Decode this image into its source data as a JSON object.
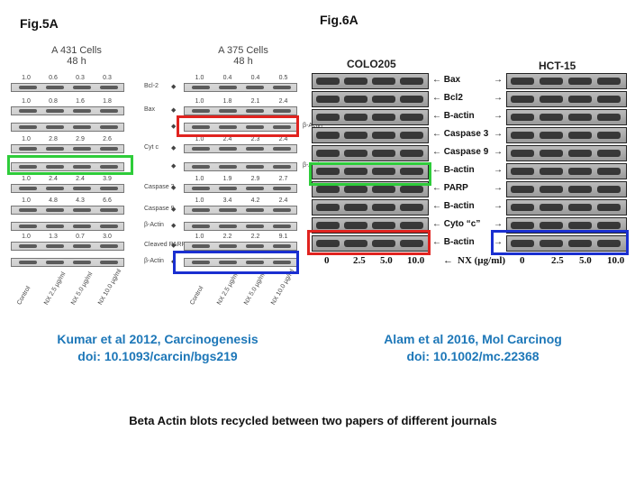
{
  "fig5": {
    "label": "Fig.5A",
    "left_title": "A 431 Cells",
    "left_time": "48 h",
    "right_title": "A 375 Cells",
    "right_time": "48 h",
    "left_rows": [
      {
        "nums": [
          "1.0",
          "0.6",
          "0.3",
          "0.3"
        ],
        "label": "Bcl-2"
      },
      {
        "nums": [
          "1.0",
          "0.8",
          "1.6",
          "1.8"
        ],
        "label": "Bax"
      },
      {
        "nums": [
          "",
          "",
          "",
          ""
        ],
        "label": ""
      },
      {
        "nums": [
          "1.0",
          "2.8",
          "2.9",
          "2.6"
        ],
        "label": "Cyt c"
      },
      {
        "nums": [
          "",
          "",
          "",
          ""
        ],
        "label": ""
      },
      {
        "nums": [
          "1.0",
          "2.4",
          "2.4",
          "3.9"
        ],
        "label": "Caspase 3"
      },
      {
        "nums": [
          "1.0",
          "4.8",
          "4.3",
          "6.6"
        ],
        "label": "Caspase 9"
      },
      {
        "nums": [
          "",
          "",
          "",
          ""
        ],
        "label": "β-Actin"
      },
      {
        "nums": [
          "1.0",
          "1.3",
          "0.7",
          "3.0"
        ],
        "label": "Cleaved PARP"
      },
      {
        "nums": [
          "",
          "",
          "",
          ""
        ],
        "label": "β-Actin"
      }
    ],
    "right_rows": [
      {
        "nums": [
          "1.0",
          "0.4",
          "0.4",
          "0.5"
        ]
      },
      {
        "nums": [
          "1.0",
          "1.8",
          "2.1",
          "2.4"
        ]
      },
      {
        "nums": [
          "",
          "",
          "",
          ""
        ],
        "label": "β-Actin"
      },
      {
        "nums": [
          "1.0",
          "2.4",
          "2.3",
          "2.4"
        ]
      },
      {
        "nums": [
          "",
          "",
          "",
          ""
        ],
        "label": "β-Actin"
      },
      {
        "nums": [
          "1.0",
          "1.9",
          "2.9",
          "2.7"
        ]
      },
      {
        "nums": [
          "1.0",
          "3.4",
          "4.2",
          "2.4"
        ]
      },
      {
        "nums": [
          "",
          "",
          "",
          ""
        ]
      },
      {
        "nums": [
          "1.0",
          "2.2",
          "2.2",
          "9.1"
        ]
      },
      {
        "nums": [
          "",
          "",
          "",
          ""
        ]
      }
    ],
    "xlabels": [
      "Control",
      "NX 2.5 µg/ml",
      "NX 5.0 µg/ml",
      "NX 10.0 µg/ml"
    ]
  },
  "fig6": {
    "label": "Fig.6A",
    "left_title": "COLO205",
    "right_title": "HCT-15",
    "rows": [
      "Bax",
      "Bcl2",
      "B-actin",
      "Caspase 3",
      "Caspase 9",
      "B-actin",
      "PARP",
      "B-actin",
      "Cyto “c”",
      "B-actin"
    ],
    "xticks": [
      "0",
      "2.5",
      "5.0",
      "10.0"
    ],
    "xunit": "NX (µg/ml)"
  },
  "citations": {
    "left_line1": "Kumar et al 2012, Carcinogenesis",
    "left_line2": "doi: 10.1093/carcin/bgs219",
    "right_line1": "Alam et al 2016, Mol Carcinog",
    "right_line2": "doi: 10.1002/mc.22368"
  },
  "caption": "Beta Actin blots recycled between two papers of different journals",
  "colors": {
    "green": "#2ecc3a",
    "red": "#e0231f",
    "blue": "#1a2fd0",
    "cite": "#1d77b8"
  }
}
